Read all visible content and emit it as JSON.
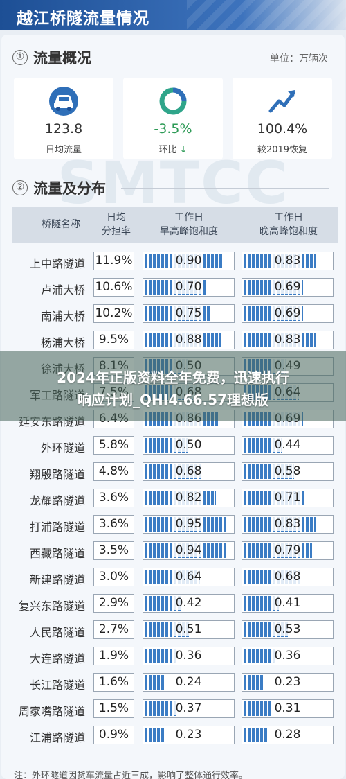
{
  "header": {
    "title": "越江桥隧流量情况"
  },
  "section1": {
    "num": "①",
    "title": "流量概况",
    "unit": "单位：万辆次"
  },
  "stats": [
    {
      "icon": "car-icon",
      "value": "123.8",
      "label": "日均流量"
    },
    {
      "icon": "ring-chart-icon",
      "value": "-3.5%",
      "label": "环比",
      "arrow": "↓"
    },
    {
      "icon": "trend-up-icon",
      "value": "100.4%",
      "label": "较2019恢复"
    }
  ],
  "section2": {
    "num": "②",
    "title": "流量及分布"
  },
  "watermark": "SMTCC",
  "table": {
    "headers": {
      "name": "桥隧名称",
      "share": "日均\n分担率",
      "am": "工作日\n早高峰饱和度",
      "pm": "工作日\n晚高峰饱和度"
    },
    "rows": [
      {
        "name": "上中路隧道",
        "share": "11.9%",
        "am": "0.90",
        "pm": "0.83",
        "am_v": 0.9,
        "pm_v": 0.83
      },
      {
        "name": "卢浦大桥",
        "share": "10.6%",
        "am": "0.70",
        "pm": "0.69",
        "am_v": 0.7,
        "pm_v": 0.69
      },
      {
        "name": "南浦大桥",
        "share": "10.2%",
        "am": "0.75",
        "pm": "0.69",
        "am_v": 0.75,
        "pm_v": 0.69
      },
      {
        "name": "杨浦大桥",
        "share": "9.5%",
        "am": "0.88",
        "pm": "0.83",
        "am_v": 0.88,
        "pm_v": 0.83
      },
      {
        "name": "徐浦大桥",
        "share": "8.1%",
        "am": "0.50",
        "pm": "0.49",
        "am_v": 0.5,
        "pm_v": 0.49
      },
      {
        "name": "军工路隧道",
        "share": "7.5%",
        "am": "0.68",
        "pm": "0.64",
        "am_v": 0.68,
        "pm_v": 0.64
      },
      {
        "name": "延安东路隧道",
        "share": "6.4%",
        "am": "0.86",
        "pm": "0.69",
        "am_v": 0.86,
        "pm_v": 0.69
      },
      {
        "name": "外环隧道",
        "share": "5.8%",
        "am": "0.50",
        "pm": "0.44",
        "am_v": 0.5,
        "pm_v": 0.44
      },
      {
        "name": "翔殷路隧道",
        "share": "4.8%",
        "am": "0.68",
        "pm": "0.58",
        "am_v": 0.68,
        "pm_v": 0.58
      },
      {
        "name": "龙耀路隧道",
        "share": "3.6%",
        "am": "0.82",
        "pm": "0.71",
        "am_v": 0.82,
        "pm_v": 0.71
      },
      {
        "name": "打浦路隧道",
        "share": "3.6%",
        "am": "0.95",
        "pm": "0.83",
        "am_v": 0.95,
        "pm_v": 0.83
      },
      {
        "name": "西藏路隧道",
        "share": "3.5%",
        "am": "0.94",
        "pm": "0.79",
        "am_v": 0.94,
        "pm_v": 0.79
      },
      {
        "name": "新建路隧道",
        "share": "3.0%",
        "am": "0.64",
        "pm": "0.68",
        "am_v": 0.64,
        "pm_v": 0.68
      },
      {
        "name": "复兴东路隧道",
        "share": "2.9%",
        "am": "0.42",
        "pm": "0.41",
        "am_v": 0.42,
        "pm_v": 0.41
      },
      {
        "name": "人民路隧道",
        "share": "2.7%",
        "am": "0.51",
        "pm": "0.53",
        "am_v": 0.51,
        "pm_v": 0.53
      },
      {
        "name": "大连路隧道",
        "share": "1.9%",
        "am": "0.36",
        "pm": "0.36",
        "am_v": 0.36,
        "pm_v": 0.36
      },
      {
        "name": "长江路隧道",
        "share": "1.6%",
        "am": "0.24",
        "pm": "0.23",
        "am_v": 0.24,
        "pm_v": 0.23
      },
      {
        "name": "周家嘴路隧道",
        "share": "1.5%",
        "am": "0.37",
        "pm": "0.31",
        "am_v": 0.37,
        "pm_v": 0.31
      },
      {
        "name": "江浦路隧道",
        "share": "0.9%",
        "am": "0.23",
        "pm": "0.28",
        "am_v": 0.23,
        "pm_v": 0.28
      }
    ]
  },
  "note": "注：外环隧道因货车流量占近三成，影响了整体通行效率。",
  "overlay": {
    "line1": "2024年正版资料全年免费，迅速执行",
    "line2": "响应计划_QHI4.66.57理想版"
  },
  "colors": {
    "header": "#1d4f95",
    "bar": "#3b7cc4",
    "green": "#2e9b57"
  }
}
